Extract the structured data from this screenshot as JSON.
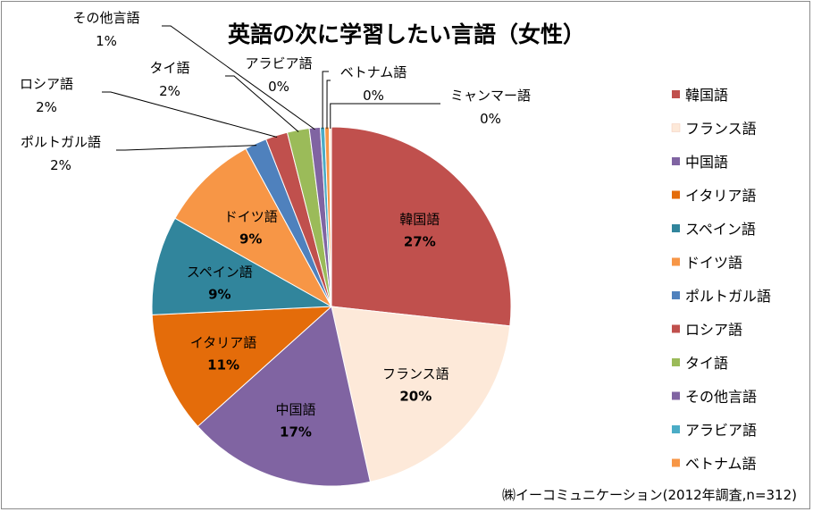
{
  "chart_data": {
    "type": "pie",
    "title": "英語の次に学習したい言語（女性）",
    "source_note": "㈱イーコミュニケーション(2012年調査,n=312)",
    "legend_position": "right",
    "slices": [
      {
        "name": "韓国語",
        "value": 27,
        "percent_label": "27%",
        "color": "#c0504d"
      },
      {
        "name": "フランス語",
        "value": 20,
        "percent_label": "20%",
        "color": "#fde9d9"
      },
      {
        "name": "中国語",
        "value": 17,
        "percent_label": "17%",
        "color": "#8064a2"
      },
      {
        "name": "イタリア語",
        "value": 11,
        "percent_label": "11%",
        "color": "#e46c0a"
      },
      {
        "name": "スペイン語",
        "value": 9,
        "percent_label": "9%",
        "color": "#31859c"
      },
      {
        "name": "ドイツ語",
        "value": 9,
        "percent_label": "9%",
        "color": "#f79646"
      },
      {
        "name": "ポルトガル語",
        "value": 2,
        "percent_label": "2%",
        "color": "#4f81bd"
      },
      {
        "name": "ロシア語",
        "value": 2,
        "percent_label": "2%",
        "color": "#c0504d"
      },
      {
        "name": "タイ語",
        "value": 2,
        "percent_label": "2%",
        "color": "#9bbb59"
      },
      {
        "name": "その他言語",
        "value": 1,
        "percent_label": "1%",
        "color": "#8064a2"
      },
      {
        "name": "アラビア語",
        "value": 0.4,
        "percent_label": "0%",
        "color": "#4bacc6"
      },
      {
        "name": "ベトナム語",
        "value": 0.4,
        "percent_label": "0%",
        "color": "#f79646"
      },
      {
        "name": "ミャンマー語",
        "value": 0.2,
        "percent_label": "0%",
        "color": "#fde9d9"
      }
    ],
    "legend": [
      {
        "name": "韓国語",
        "color": "#c0504d"
      },
      {
        "name": "フランス語",
        "color": "#fde9d9"
      },
      {
        "name": "中国語",
        "color": "#8064a2"
      },
      {
        "name": "イタリア語",
        "color": "#e46c0a"
      },
      {
        "name": "スペイン語",
        "color": "#31859c"
      },
      {
        "name": "ドイツ語",
        "color": "#f79646"
      },
      {
        "name": "ポルトガル語",
        "color": "#4f81bd"
      },
      {
        "name": "ロシア語",
        "color": "#c0504d"
      },
      {
        "name": "タイ語",
        "color": "#9bbb59"
      },
      {
        "name": "その他言語",
        "color": "#8064a2"
      },
      {
        "name": "アラビア語",
        "color": "#4bacc6"
      },
      {
        "name": "ベトナム語",
        "color": "#f79646"
      }
    ]
  }
}
